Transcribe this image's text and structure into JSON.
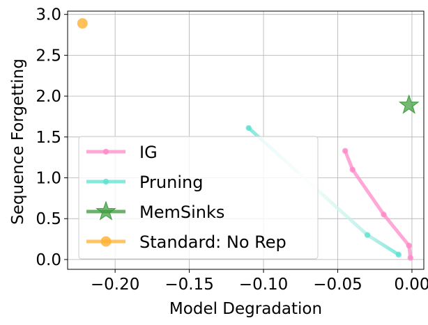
{
  "chart_data": {
    "type": "line",
    "xlabel": "Model Degradation",
    "ylabel": "Sequence Forgetting",
    "xlim": [
      -0.232,
      0.008
    ],
    "ylim": [
      -0.12,
      3.04
    ],
    "x_ticks": [
      -0.2,
      -0.15,
      -0.1,
      -0.05,
      0.0
    ],
    "x_tick_labels": [
      "−0.20",
      "−0.15",
      "−0.10",
      "−0.05",
      "0.00"
    ],
    "y_ticks": [
      0.0,
      0.5,
      1.0,
      1.5,
      2.0,
      2.5,
      3.0
    ],
    "y_tick_labels": [
      "0.0",
      "0.5",
      "1.0",
      "1.5",
      "2.0",
      "2.5",
      "3.0"
    ],
    "grid": true,
    "legend_position": "lower-left",
    "series": [
      {
        "name": "IG",
        "color": "#ff8ac8",
        "marker": "circle",
        "x": [
          -0.045,
          -0.04,
          -0.019,
          -0.002,
          -0.001
        ],
        "y": [
          1.33,
          1.1,
          0.55,
          0.17,
          0.02
        ]
      },
      {
        "name": "Pruning",
        "color": "#5fe0d0",
        "marker": "circle",
        "x": [
          -0.11,
          -0.03,
          -0.009
        ],
        "y": [
          1.61,
          0.3,
          0.06
        ]
      },
      {
        "name": "MemSinks",
        "color": "#3a9a3a",
        "marker": "star",
        "x": [
          -0.002
        ],
        "y": [
          1.89
        ]
      },
      {
        "name": "Standard: No Rep",
        "color": "#ffb030",
        "marker": "circle",
        "x": [
          -0.222
        ],
        "y": [
          2.89
        ]
      }
    ]
  }
}
